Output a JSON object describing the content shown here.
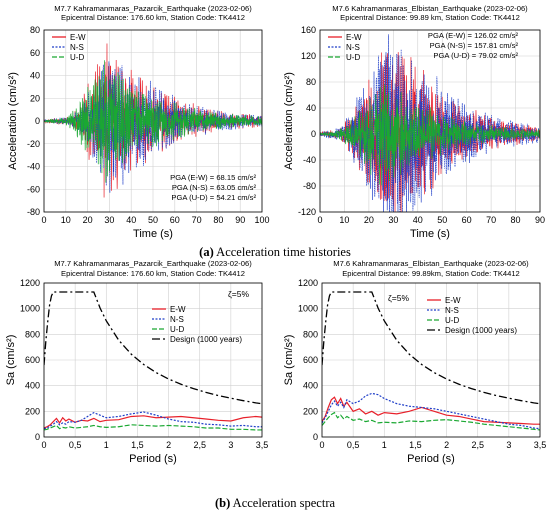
{
  "captions": [
    {
      "letter": "(a)",
      "text": " Acceleration time histories"
    },
    {
      "letter": "(b)",
      "text": " Acceleration spectra"
    }
  ],
  "colors": {
    "ew": "#e8202a",
    "ns": "#1f3ec8",
    "ud": "#1aa832",
    "design": "#000000",
    "grid": "#d0d0d0"
  },
  "chart_data": [
    {
      "id": "th1",
      "type": "line",
      "title": "M7.7 Kahramanmaras_Pazarcik_Earthquake (2023-02-06)",
      "subtitle": "Epicentral Distance: 176.60 km, Station Code: TK4412",
      "xlabel": "Time (s)",
      "ylabel": "Acceleration (cm/s²)",
      "xlim": [
        0,
        100
      ],
      "ylim": [
        -80,
        80
      ],
      "xticks": [
        "0",
        "10",
        "20",
        "30",
        "40",
        "50",
        "60",
        "70",
        "80",
        "90",
        "100"
      ],
      "yticks": [
        "-80",
        "-60",
        "-40",
        "-20",
        "0",
        "20",
        "40",
        "60",
        "80"
      ],
      "legend": [
        "E-W",
        "N-S",
        "U-D"
      ],
      "legend_position": "top-left",
      "annotations": [
        "PGA (E-W) = 68.15 cm/s²",
        "PGA (N-S) = 63.05 cm/s²",
        "PGA (U-D) = 54.21 cm/s²"
      ],
      "annotation_position": "bottom-right",
      "series": [
        {
          "name": "E-W",
          "pga": 68.15,
          "signal": {
            "onset": 12,
            "peak": 28,
            "coda": 45,
            "end": 100,
            "seed": 11
          }
        },
        {
          "name": "N-S",
          "pga": 63.05,
          "signal": {
            "onset": 12,
            "peak": 30,
            "coda": 48,
            "end": 100,
            "seed": 23
          }
        },
        {
          "name": "U-D",
          "pga": 54.21,
          "signal": {
            "onset": 10,
            "peak": 27,
            "coda": 42,
            "end": 100,
            "seed": 37
          }
        }
      ]
    },
    {
      "id": "th2",
      "type": "line",
      "title": "M7.6 Kahramanmaras_Elbistan_Earthquake (2023-02-06)",
      "subtitle": "Epicentral Distance: 99.89 km, Station Code: TK4412",
      "xlabel": "Time (s)",
      "ylabel": "Acceleration (cm/s²)",
      "xlim": [
        0,
        90
      ],
      "ylim": [
        -120,
        160
      ],
      "xticks": [
        "0",
        "10",
        "20",
        "30",
        "40",
        "50",
        "60",
        "70",
        "80",
        "90"
      ],
      "yticks": [
        "-120",
        "-80",
        "-40",
        "0",
        "40",
        "80",
        "120",
        "160"
      ],
      "legend": [
        "E-W",
        "N-S",
        "U-D"
      ],
      "legend_position": "top-left",
      "annotations": [
        "PGA (E-W) = 126.02 cm/s²",
        "PGA (N-S) = 157.81 cm/s²",
        "PGA (U-D) = 79.02 cm/s²"
      ],
      "annotation_position": "top-right",
      "series": [
        {
          "name": "E-W",
          "pga": 126.02,
          "signal": {
            "onset": 8,
            "peak": 28,
            "coda": 45,
            "end": 90,
            "seed": 51
          }
        },
        {
          "name": "N-S",
          "pga": 157.81,
          "signal": {
            "onset": 8,
            "peak": 27,
            "coda": 45,
            "end": 90,
            "seed": 67
          }
        },
        {
          "name": "U-D",
          "pga": 79.02,
          "signal": {
            "onset": 6,
            "peak": 25,
            "coda": 42,
            "end": 90,
            "seed": 79
          }
        }
      ]
    },
    {
      "id": "sp1",
      "type": "line",
      "title": "M7.7 Kahramanmaras_Pazarcik_Earthquake (2023-02-06)",
      "subtitle": "Epicentral Distance: 176.60 km, Station Code: TK4412",
      "xlabel": "Period (s)",
      "ylabel": "Sa (cm/s²)",
      "xlim": [
        0,
        3.5
      ],
      "ylim": [
        0,
        1200
      ],
      "xticks": [
        "0",
        "0,5",
        "1",
        "1,5",
        "2",
        "2,5",
        "3",
        "3,5"
      ],
      "yticks": [
        "0",
        "200",
        "400",
        "600",
        "800",
        "1000",
        "1200"
      ],
      "legend": [
        "E-W",
        "N-S",
        "U-D",
        "Design (1000 years)"
      ],
      "legend_position": "right",
      "annotations": [
        "ζ=5%"
      ],
      "series": [
        {
          "name": "E-W",
          "x": [
            0,
            0.05,
            0.1,
            0.15,
            0.2,
            0.25,
            0.3,
            0.35,
            0.4,
            0.5,
            0.6,
            0.7,
            0.8,
            0.9,
            1.0,
            1.2,
            1.4,
            1.6,
            1.8,
            2.0,
            2.2,
            2.4,
            2.6,
            2.8,
            3.0,
            3.2,
            3.4,
            3.5
          ],
          "y": [
            70,
            80,
            95,
            120,
            145,
            110,
            150,
            125,
            140,
            115,
            130,
            125,
            145,
            120,
            130,
            135,
            160,
            165,
            150,
            155,
            160,
            150,
            140,
            130,
            125,
            150,
            160,
            155
          ]
        },
        {
          "name": "N-S",
          "x": [
            0,
            0.05,
            0.1,
            0.15,
            0.2,
            0.25,
            0.3,
            0.35,
            0.4,
            0.5,
            0.6,
            0.7,
            0.8,
            0.9,
            1.0,
            1.2,
            1.4,
            1.6,
            1.8,
            2.0,
            2.2,
            2.4,
            2.6,
            2.8,
            3.0,
            3.2,
            3.4,
            3.5
          ],
          "y": [
            65,
            70,
            85,
            100,
            120,
            95,
            110,
            100,
            120,
            115,
            130,
            160,
            190,
            170,
            150,
            160,
            180,
            195,
            170,
            140,
            120,
            115,
            100,
            95,
            85,
            90,
            80,
            80
          ]
        },
        {
          "name": "U-D",
          "x": [
            0,
            0.05,
            0.1,
            0.15,
            0.2,
            0.25,
            0.3,
            0.35,
            0.4,
            0.5,
            0.6,
            0.7,
            0.8,
            0.9,
            1.0,
            1.2,
            1.4,
            1.6,
            1.8,
            2.0,
            2.2,
            2.4,
            2.6,
            2.8,
            3.0,
            3.2,
            3.4,
            3.5
          ],
          "y": [
            55,
            60,
            70,
            80,
            90,
            65,
            75,
            70,
            80,
            70,
            75,
            80,
            90,
            80,
            75,
            80,
            95,
            90,
            85,
            90,
            85,
            80,
            70,
            70,
            60,
            60,
            55,
            55
          ]
        },
        {
          "name": "Design (1000 years)",
          "x": [
            0,
            0.03,
            0.06,
            0.09,
            0.12,
            0.15,
            0.2,
            0.8,
            0.9,
            1.0,
            1.2,
            1.4,
            1.6,
            1.8,
            2.0,
            2.2,
            2.4,
            2.6,
            2.8,
            3.0,
            3.2,
            3.4,
            3.5
          ],
          "y": [
            560,
            750,
            900,
            1030,
            1100,
            1130,
            1130,
            1130,
            1005,
            905,
            754,
            646,
            565,
            502,
            452,
            411,
            377,
            348,
            323,
            302,
            283,
            266,
            259
          ]
        }
      ]
    },
    {
      "id": "sp2",
      "type": "line",
      "title": "M7.6 Kahramanmaras_Elbistan_Earthquake (2023-02-06)",
      "subtitle": "Epicentral Distance: 99.89km, Station Code: TK4412",
      "xlabel": "Period (s)",
      "ylabel": "Sa (cm/s²)",
      "xlim": [
        0,
        3.5
      ],
      "ylim": [
        0,
        1200
      ],
      "xticks": [
        "0",
        "0,5",
        "1",
        "1,5",
        "2",
        "2,5",
        "3",
        "3,5"
      ],
      "yticks": [
        "0",
        "200",
        "400",
        "600",
        "800",
        "1000",
        "1200"
      ],
      "legend": [
        "E-W",
        "N-S",
        "U-D",
        "Design (1000 years)"
      ],
      "legend_position": "right",
      "annotations": [
        "ζ=5%"
      ],
      "series": [
        {
          "name": "E-W",
          "x": [
            0,
            0.05,
            0.1,
            0.15,
            0.2,
            0.25,
            0.3,
            0.35,
            0.4,
            0.5,
            0.6,
            0.7,
            0.8,
            0.9,
            1.0,
            1.2,
            1.4,
            1.6,
            1.8,
            2.0,
            2.2,
            2.4,
            2.6,
            2.8,
            3.0,
            3.2,
            3.4,
            3.5
          ],
          "y": [
            120,
            160,
            230,
            290,
            310,
            260,
            300,
            240,
            270,
            200,
            220,
            180,
            200,
            170,
            190,
            180,
            200,
            230,
            200,
            170,
            160,
            140,
            120,
            115,
            110,
            105,
            100,
            100
          ]
        },
        {
          "name": "N-S",
          "x": [
            0,
            0.05,
            0.1,
            0.15,
            0.2,
            0.25,
            0.3,
            0.35,
            0.4,
            0.5,
            0.6,
            0.7,
            0.8,
            0.9,
            1.0,
            1.2,
            1.4,
            1.6,
            1.8,
            2.0,
            2.2,
            2.4,
            2.6,
            2.8,
            3.0,
            3.2,
            3.4,
            3.5
          ],
          "y": [
            110,
            150,
            200,
            250,
            280,
            240,
            270,
            230,
            290,
            260,
            280,
            320,
            340,
            330,
            300,
            260,
            240,
            230,
            220,
            200,
            180,
            160,
            140,
            120,
            100,
            90,
            70,
            65
          ]
        },
        {
          "name": "U-D",
          "x": [
            0,
            0.05,
            0.1,
            0.15,
            0.2,
            0.25,
            0.3,
            0.35,
            0.4,
            0.5,
            0.6,
            0.7,
            0.8,
            0.9,
            1.0,
            1.2,
            1.4,
            1.6,
            1.8,
            2.0,
            2.2,
            2.4,
            2.6,
            2.8,
            3.0,
            3.2,
            3.4,
            3.5
          ],
          "y": [
            90,
            120,
            150,
            175,
            190,
            150,
            170,
            140,
            160,
            130,
            140,
            120,
            130,
            110,
            115,
            110,
            125,
            120,
            130,
            135,
            125,
            115,
            100,
            90,
            80,
            70,
            60,
            55
          ]
        },
        {
          "name": "Design (1000 years)",
          "x": [
            0,
            0.03,
            0.06,
            0.09,
            0.12,
            0.15,
            0.2,
            0.8,
            0.9,
            1.0,
            1.2,
            1.4,
            1.6,
            1.8,
            2.0,
            2.2,
            2.4,
            2.6,
            2.8,
            3.0,
            3.2,
            3.4,
            3.5
          ],
          "y": [
            560,
            750,
            900,
            1030,
            1100,
            1130,
            1130,
            1130,
            1005,
            905,
            754,
            646,
            565,
            502,
            452,
            411,
            377,
            348,
            323,
            302,
            283,
            266,
            259
          ]
        }
      ]
    }
  ]
}
